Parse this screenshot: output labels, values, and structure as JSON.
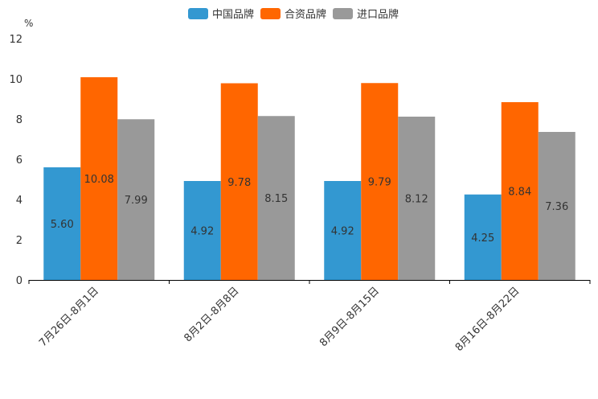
{
  "chart_data": {
    "type": "bar",
    "ylabel": "%",
    "ylim": [
      0,
      12
    ],
    "yticks": [
      0,
      2,
      4,
      6,
      8,
      10,
      12
    ],
    "categories": [
      "7月26日-8月1日",
      "8月2日-8月8日",
      "8月9日-8月15日",
      "8月16日-8月22日"
    ],
    "series": [
      {
        "name": "中国品牌",
        "color": "#3398D1",
        "values": [
          5.6,
          4.92,
          4.92,
          4.25
        ],
        "labels": [
          "5.60",
          "4.92",
          "4.92",
          "4.25"
        ]
      },
      {
        "name": "合资品牌",
        "color": "#FF6600",
        "values": [
          10.08,
          9.78,
          9.79,
          8.84
        ],
        "labels": [
          "10.08",
          "9.78",
          "9.79",
          "8.84"
        ]
      },
      {
        "name": "进口品牌",
        "color": "#999999",
        "values": [
          7.99,
          8.15,
          8.12,
          7.36
        ],
        "labels": [
          "7.99",
          "8.15",
          "8.12",
          "7.36"
        ]
      }
    ],
    "legend_position": "top-center",
    "grid": false
  }
}
